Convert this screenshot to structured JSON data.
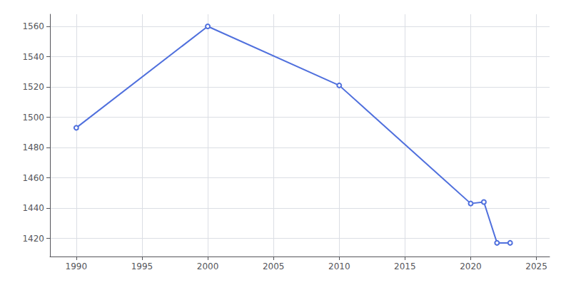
{
  "chart_data": {
    "type": "line",
    "x": [
      1990,
      2000,
      2010,
      2020,
      2021,
      2022,
      2023
    ],
    "values": [
      1493,
      1560,
      1521,
      1443,
      1444,
      1417,
      1417
    ],
    "xlim": [
      1988,
      2026
    ],
    "ylim": [
      1408,
      1568
    ],
    "xticks": [
      1990,
      1995,
      2000,
      2005,
      2010,
      2015,
      2020,
      2025
    ],
    "yticks": [
      1420,
      1440,
      1460,
      1480,
      1500,
      1520,
      1540,
      1560
    ],
    "grid": true
  }
}
